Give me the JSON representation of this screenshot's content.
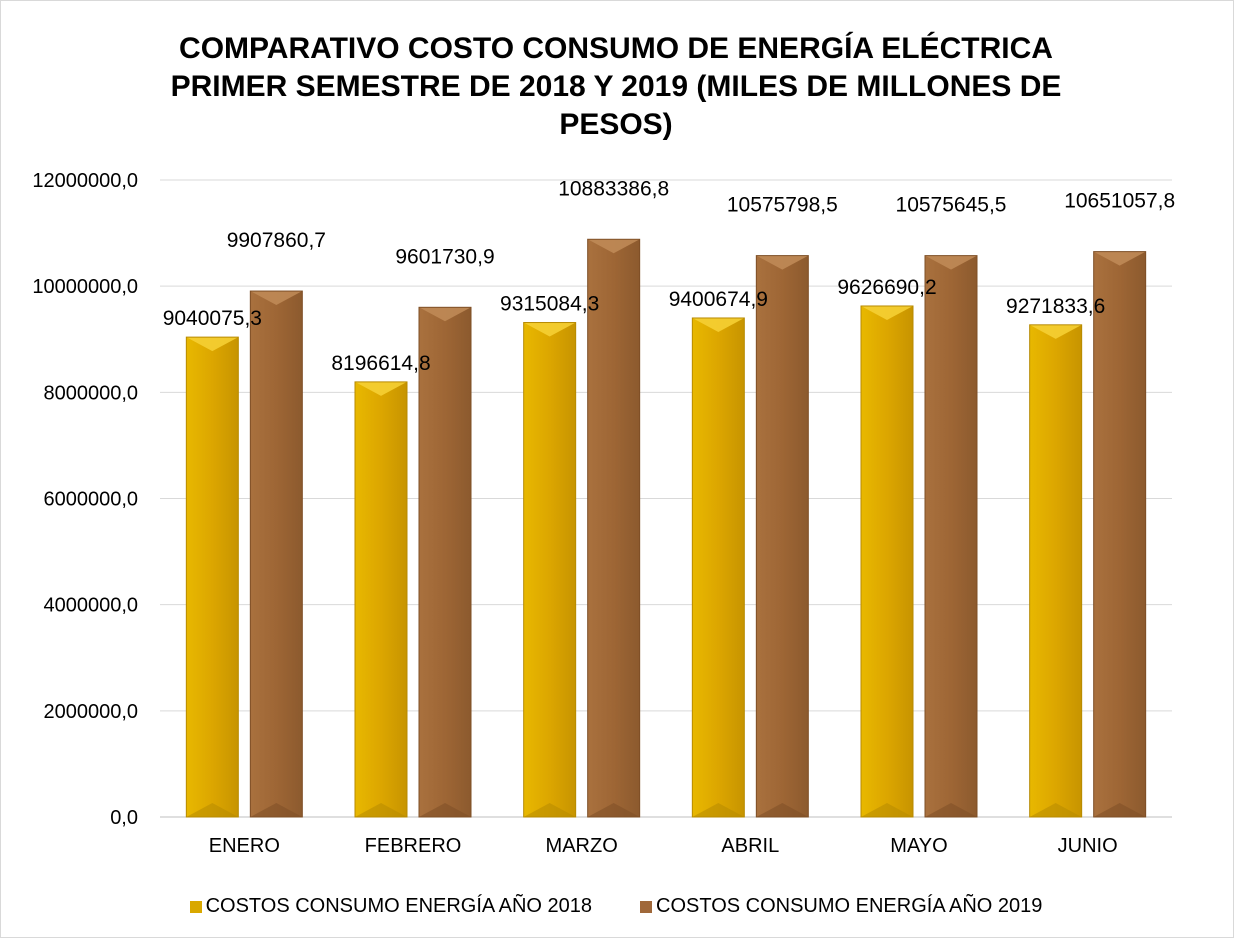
{
  "chart_data": {
    "type": "bar",
    "title_lines": [
      "COMPARATIVO COSTO  CONSUMO DE ENERGÍA ELÉCTRICA",
      "PRIMER SEMESTRE DE 2018 Y 2019 (MILES DE MILLONES DE",
      "PESOS)"
    ],
    "categories": [
      "ENERO",
      "FEBRERO",
      "MARZO",
      "ABRIL",
      "MAYO",
      "JUNIO"
    ],
    "series": [
      {
        "name": "COSTOS CONSUMO ENERGÍA AÑO 2018",
        "color": "#D9A800",
        "values": [
          9040075.3,
          8196614.8,
          9315084.3,
          9400674.9,
          9626690.2,
          9271833.6
        ],
        "labels": [
          "9040075,3",
          "8196614,8",
          "9315084,3",
          "9400674,9",
          "9626690,2",
          "9271833,6"
        ]
      },
      {
        "name": "COSTOS CONSUMO ENERGÍA AÑO 2019",
        "color": "#A0683A",
        "values": [
          9907860.7,
          9601730.9,
          10883386.8,
          10575798.5,
          10575645.5,
          10651057.8
        ],
        "labels": [
          "9907860,7",
          "9601730,9",
          "10883386,8",
          "10575798,5",
          "10575645,5",
          "10651057,8"
        ]
      }
    ],
    "ylim": [
      0,
      12000000
    ],
    "yticks": [
      0,
      2000000,
      4000000,
      6000000,
      8000000,
      10000000,
      12000000
    ],
    "ytick_labels": [
      "0,0",
      "2000000,0",
      "4000000,0",
      "6000000,0",
      "8000000,0",
      "10000000,0",
      "12000000,0"
    ],
    "grid": true,
    "legend_position": "bottom"
  }
}
